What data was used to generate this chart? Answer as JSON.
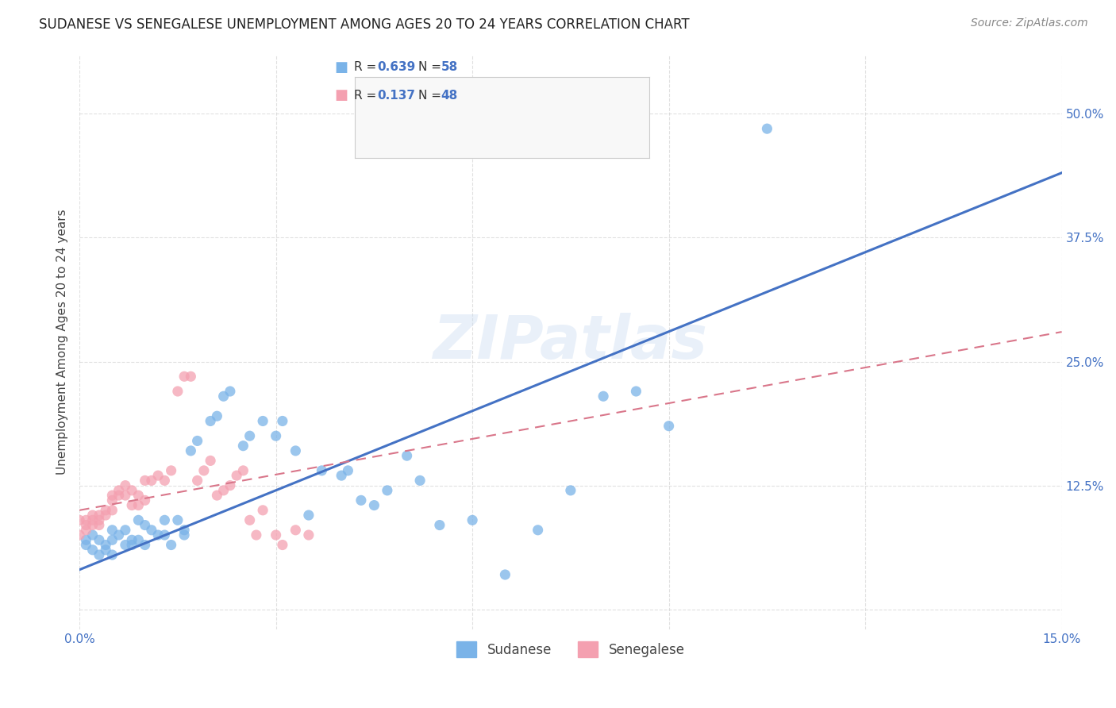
{
  "title": "SUDANESE VS SENEGALESE UNEMPLOYMENT AMONG AGES 20 TO 24 YEARS CORRELATION CHART",
  "source": "Source: ZipAtlas.com",
  "ylabel": "Unemployment Among Ages 20 to 24 years",
  "xlim": [
    0.0,
    0.15
  ],
  "ylim": [
    -0.02,
    0.56
  ],
  "xticks": [
    0.0,
    0.03,
    0.06,
    0.09,
    0.12,
    0.15
  ],
  "xticklabels": [
    "0.0%",
    "",
    "",
    "",
    "",
    "15.0%"
  ],
  "yticks": [
    0.0,
    0.125,
    0.25,
    0.375,
    0.5
  ],
  "yticklabels": [
    "",
    "12.5%",
    "25.0%",
    "37.5%",
    "50.0%"
  ],
  "bottom_legend": [
    "Sudanese",
    "Senegalese"
  ],
  "sudanese_color": "#7ab3e8",
  "senegalese_color": "#f4a0b0",
  "trend_sudanese_color": "#4472c4",
  "trend_senegalese_color": "#d9768a",
  "watermark": "ZIPatlas",
  "background_color": "#ffffff",
  "grid_color": "#cccccc",
  "sud_R": "0.639",
  "sud_N": "58",
  "sen_R": "0.137",
  "sen_N": "48",
  "sudanese_x": [
    0.001,
    0.001,
    0.002,
    0.002,
    0.003,
    0.003,
    0.004,
    0.004,
    0.005,
    0.005,
    0.005,
    0.006,
    0.007,
    0.007,
    0.008,
    0.008,
    0.009,
    0.009,
    0.01,
    0.01,
    0.011,
    0.012,
    0.013,
    0.013,
    0.014,
    0.015,
    0.016,
    0.016,
    0.017,
    0.018,
    0.02,
    0.021,
    0.022,
    0.023,
    0.025,
    0.026,
    0.028,
    0.03,
    0.031,
    0.033,
    0.035,
    0.037,
    0.04,
    0.041,
    0.043,
    0.045,
    0.047,
    0.05,
    0.052,
    0.055,
    0.06,
    0.065,
    0.07,
    0.075,
    0.08,
    0.085,
    0.09,
    0.105
  ],
  "sudanese_y": [
    0.065,
    0.07,
    0.075,
    0.06,
    0.055,
    0.07,
    0.065,
    0.06,
    0.07,
    0.08,
    0.055,
    0.075,
    0.065,
    0.08,
    0.07,
    0.065,
    0.09,
    0.07,
    0.085,
    0.065,
    0.08,
    0.075,
    0.09,
    0.075,
    0.065,
    0.09,
    0.08,
    0.075,
    0.16,
    0.17,
    0.19,
    0.195,
    0.215,
    0.22,
    0.165,
    0.175,
    0.19,
    0.175,
    0.19,
    0.16,
    0.095,
    0.14,
    0.135,
    0.14,
    0.11,
    0.105,
    0.12,
    0.155,
    0.13,
    0.085,
    0.09,
    0.035,
    0.08,
    0.12,
    0.215,
    0.22,
    0.185,
    0.485
  ],
  "senegalese_x": [
    0.0,
    0.0,
    0.001,
    0.001,
    0.001,
    0.002,
    0.002,
    0.002,
    0.003,
    0.003,
    0.003,
    0.004,
    0.004,
    0.005,
    0.005,
    0.005,
    0.006,
    0.006,
    0.007,
    0.007,
    0.008,
    0.008,
    0.009,
    0.009,
    0.01,
    0.01,
    0.011,
    0.012,
    0.013,
    0.014,
    0.015,
    0.016,
    0.017,
    0.018,
    0.019,
    0.02,
    0.021,
    0.022,
    0.023,
    0.024,
    0.025,
    0.026,
    0.027,
    0.028,
    0.03,
    0.031,
    0.033,
    0.035
  ],
  "senegalese_y": [
    0.09,
    0.075,
    0.085,
    0.09,
    0.08,
    0.095,
    0.085,
    0.09,
    0.085,
    0.095,
    0.09,
    0.1,
    0.095,
    0.11,
    0.115,
    0.1,
    0.115,
    0.12,
    0.115,
    0.125,
    0.105,
    0.12,
    0.105,
    0.115,
    0.11,
    0.13,
    0.13,
    0.135,
    0.13,
    0.14,
    0.22,
    0.235,
    0.235,
    0.13,
    0.14,
    0.15,
    0.115,
    0.12,
    0.125,
    0.135,
    0.14,
    0.09,
    0.075,
    0.1,
    0.075,
    0.065,
    0.08,
    0.075
  ]
}
